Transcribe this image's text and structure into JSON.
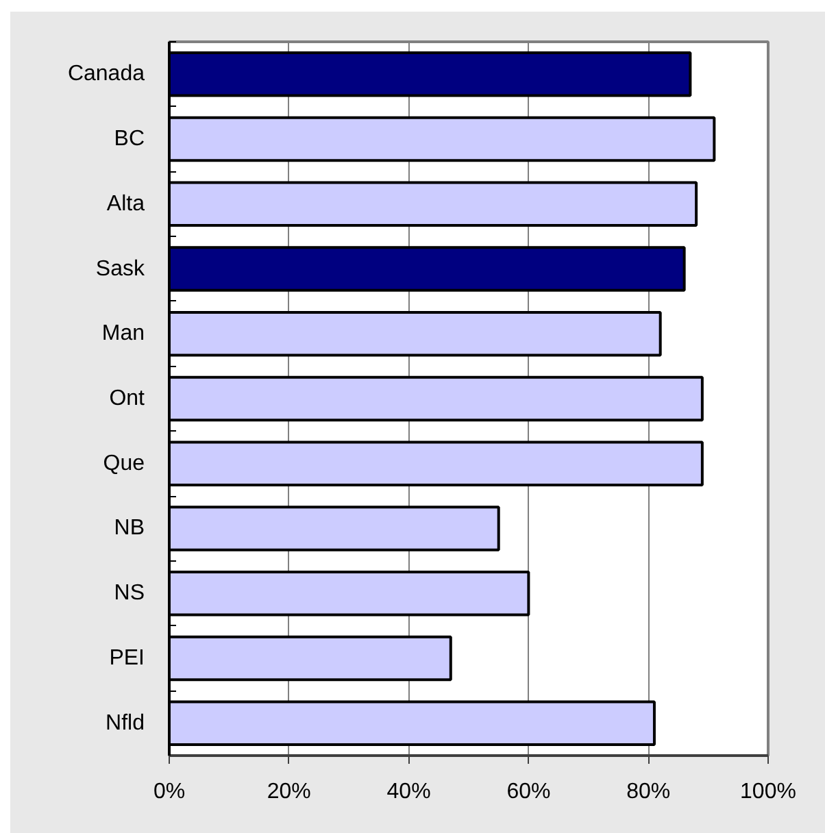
{
  "chart_data": {
    "type": "bar",
    "orientation": "horizontal",
    "categories": [
      "Canada",
      "BC",
      "Alta",
      "Sask",
      "Man",
      "Ont",
      "Que",
      "NB",
      "NS",
      "PEI",
      "Nfld"
    ],
    "values": [
      87,
      91,
      88,
      86,
      82,
      89,
      89,
      55,
      60,
      47,
      81
    ],
    "colors": [
      "#000080",
      "#ccccff",
      "#ccccff",
      "#000080",
      "#ccccff",
      "#ccccff",
      "#ccccff",
      "#ccccff",
      "#ccccff",
      "#ccccff",
      "#ccccff"
    ],
    "xlim": [
      0,
      100
    ],
    "xticks": [
      {
        "value": 0,
        "label": "0%"
      },
      {
        "value": 20,
        "label": "20%"
      },
      {
        "value": 40,
        "label": "40%"
      },
      {
        "value": 60,
        "label": "60%"
      },
      {
        "value": 80,
        "label": "80%"
      },
      {
        "value": 100,
        "label": "100%"
      }
    ],
    "grid": "x"
  }
}
